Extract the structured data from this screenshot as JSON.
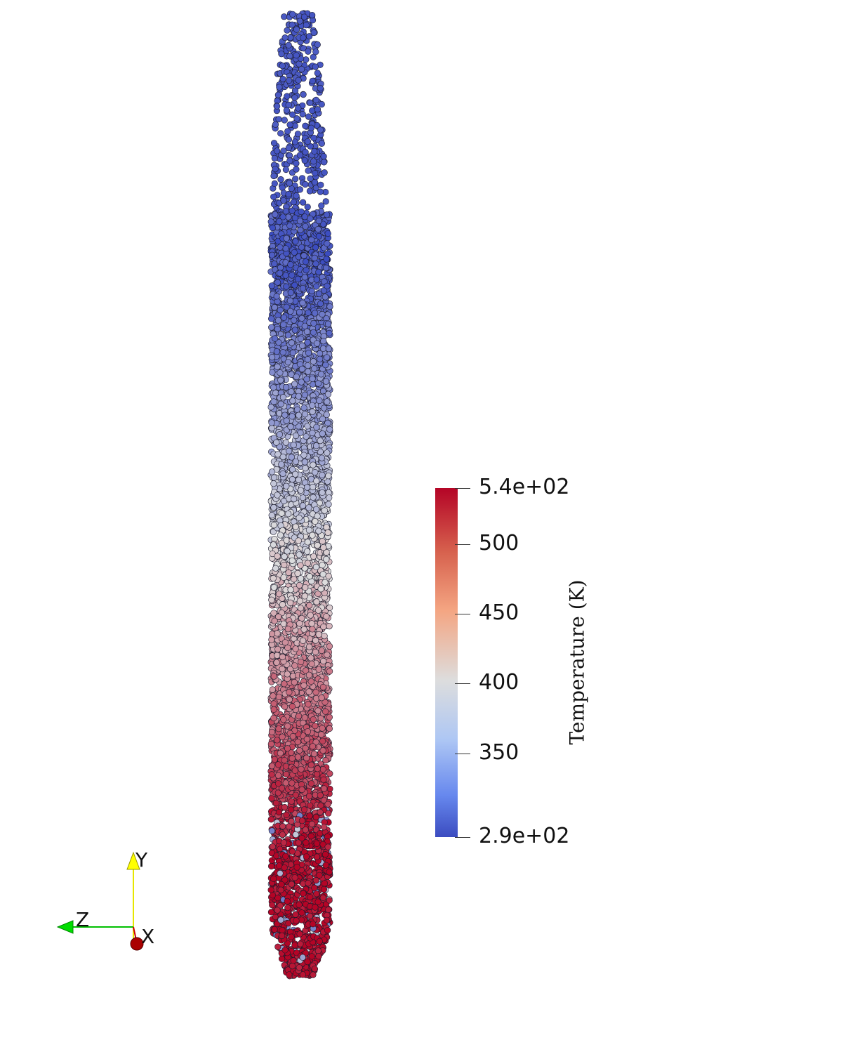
{
  "colorbar": {
    "title": "Temperature (K)",
    "min": 290,
    "max": 540,
    "ticks": [
      {
        "value": 540,
        "label": "5.4e+02"
      },
      {
        "value": 500,
        "label": "500"
      },
      {
        "value": 450,
        "label": "450"
      },
      {
        "value": 400,
        "label": "400"
      },
      {
        "value": 350,
        "label": "350"
      },
      {
        "value": 290,
        "label": "2.9e+02"
      }
    ],
    "colors": {
      "low": "#3b4cc0",
      "mid": "#dddddd",
      "high": "#b40426"
    }
  },
  "axes_triad": {
    "y_label": "Y",
    "z_label": "Z",
    "x_label": "X",
    "colors": {
      "y": "#ffff00",
      "z": "#00c000",
      "x": "#b00000"
    }
  }
}
